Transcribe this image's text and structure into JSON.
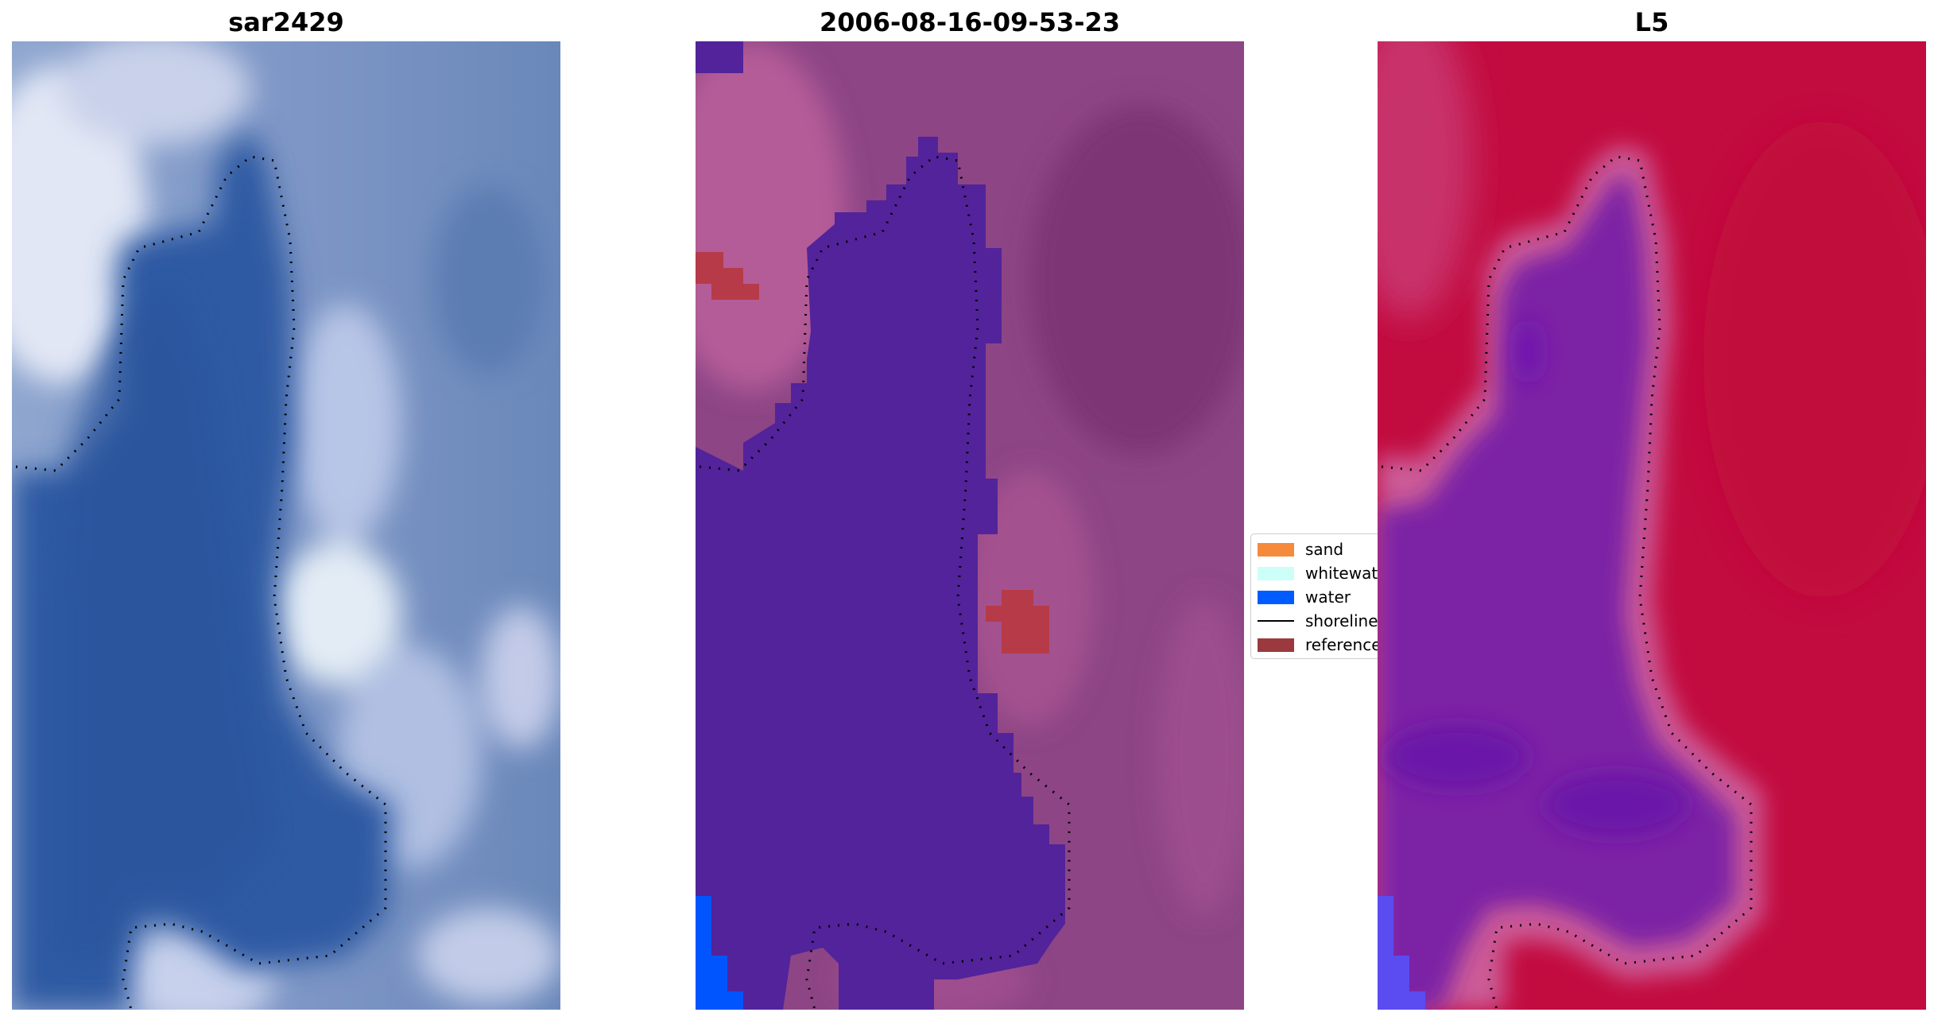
{
  "panels": [
    {
      "title": "sar2429",
      "base_color": "#4668a7",
      "water_color": "#2f5aa3"
    },
    {
      "title": "2006-08-16-09-53-23",
      "base_color": "#8a4482",
      "water_color": "#52239a",
      "sand_overlay": "#0055ff",
      "reference_color": "#b63a48"
    },
    {
      "title": "L5",
      "base_color": "#c20b3f",
      "water_color": "#7b21a5",
      "edge_color": "#cc5c97"
    }
  ],
  "legend": {
    "items": [
      {
        "label": "sand",
        "color": "#f58a3c",
        "kind": "patch"
      },
      {
        "label": "whitewater",
        "color": "#ccfff8",
        "kind": "patch"
      },
      {
        "label": "water",
        "color": "#005cff",
        "kind": "patch"
      },
      {
        "label": "shoreline",
        "color": "#000000",
        "kind": "line"
      },
      {
        "label": "reference",
        "color": "#9a3a3e",
        "kind": "patch"
      }
    ]
  }
}
